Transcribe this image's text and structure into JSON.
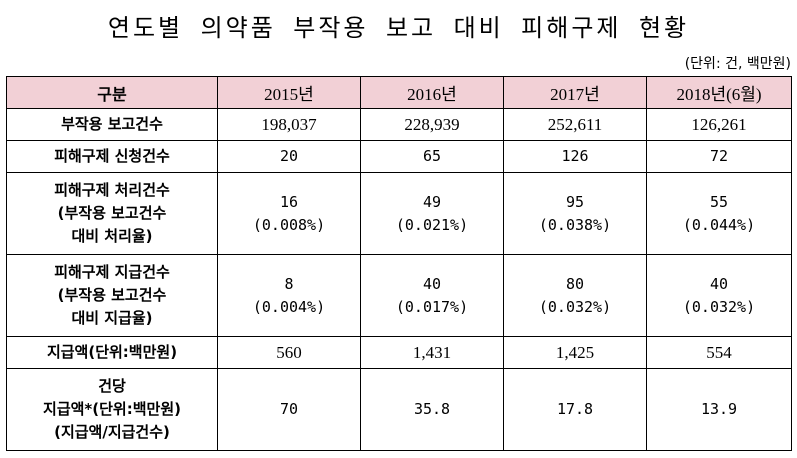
{
  "title": "연도별 의약품 부작용 보고 대비 피해구제 현황",
  "unit": "(단위: 건, 백만원)",
  "table": {
    "headers": [
      "구분",
      "2015년",
      "2016년",
      "2017년",
      "2018년(6월)"
    ],
    "rows": [
      {
        "label": [
          "부작용 보고건수"
        ],
        "values": [
          [
            "198,037"
          ],
          [
            "228,939"
          ],
          [
            "252,611"
          ],
          [
            "126,261"
          ]
        ]
      },
      {
        "label": [
          "피해구제 신청건수"
        ],
        "values": [
          [
            "20"
          ],
          [
            "65"
          ],
          [
            "126"
          ],
          [
            "72"
          ]
        ]
      },
      {
        "label": [
          "피해구제 처리건수",
          "(부작용 보고건수",
          "대비 처리율)"
        ],
        "values": [
          [
            "16",
            "(0.008%)"
          ],
          [
            "49",
            "(0.021%)"
          ],
          [
            "95",
            "(0.038%)"
          ],
          [
            "55",
            "(0.044%)"
          ]
        ]
      },
      {
        "label": [
          "피해구제 지급건수",
          "(부작용 보고건수",
          "대비 지급율)"
        ],
        "values": [
          [
            "8",
            "(0.004%)"
          ],
          [
            "40",
            "(0.017%)"
          ],
          [
            "80",
            "(0.032%)"
          ],
          [
            "40",
            "(0.032%)"
          ]
        ]
      },
      {
        "label": [
          "지급액(단위:백만원)"
        ],
        "values": [
          [
            "560"
          ],
          [
            "1,431"
          ],
          [
            "1,425"
          ],
          [
            "554"
          ]
        ]
      },
      {
        "label": [
          "건당",
          "지급액*(단위:백만원)",
          "(지급액/지급건수)"
        ],
        "values": [
          [
            "70"
          ],
          [
            "35.8"
          ],
          [
            "17.8"
          ],
          [
            "13.9"
          ]
        ]
      }
    ]
  }
}
